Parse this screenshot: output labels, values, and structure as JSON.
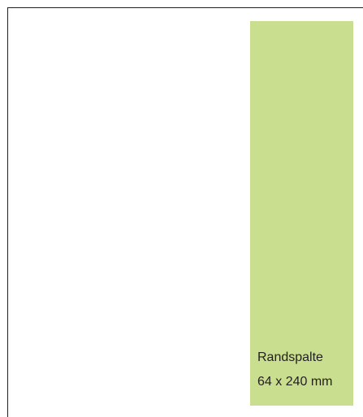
{
  "layout_preview": {
    "column_label": "Randspalte",
    "column_size": "64 x 240 mm",
    "colors": {
      "page_background": "#ffffff",
      "page_border": "#231f20",
      "column_fill": "#c9de8f",
      "text": "#231f20"
    }
  }
}
